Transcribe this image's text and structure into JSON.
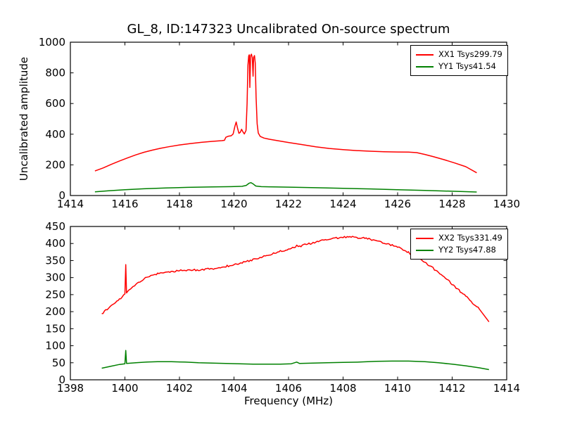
{
  "title": "GL_8, ID:147323 Uncalibrated On-source spectrum",
  "axes_labels": {
    "ylabel": "Uncalibrated amplitude",
    "xlabel": "Frequency (MHz)"
  },
  "colors": {
    "xx_line": "#ff0000",
    "yy_line": "#008000",
    "frame": "#000000",
    "background": "#ffffff"
  },
  "chart_data": [
    {
      "type": "line",
      "title": "on-source spectrum IF1",
      "xlim": [
        1414,
        1430
      ],
      "ylim": [
        0,
        1000
      ],
      "xticks": [
        1414,
        1416,
        1418,
        1420,
        1422,
        1424,
        1426,
        1428,
        1430
      ],
      "yticks": [
        0,
        200,
        400,
        600,
        800,
        1000
      ],
      "grid": false,
      "legend_position": "upper right",
      "series": [
        {
          "name": "XX1 Tsys299.79",
          "color": "#ff0000",
          "noise": false,
          "points": [
            [
              1414.9,
              160
            ],
            [
              1415.2,
              180
            ],
            [
              1415.5,
              203
            ],
            [
              1415.8,
              225
            ],
            [
              1416.1,
              246
            ],
            [
              1416.4,
              265
            ],
            [
              1416.7,
              282
            ],
            [
              1417.0,
              296
            ],
            [
              1417.3,
              308
            ],
            [
              1417.6,
              318
            ],
            [
              1418.0,
              330
            ],
            [
              1418.4,
              339
            ],
            [
              1418.8,
              347
            ],
            [
              1419.2,
              353
            ],
            [
              1419.55,
              358
            ],
            [
              1419.65,
              360
            ],
            [
              1419.7,
              380
            ],
            [
              1419.8,
              387
            ],
            [
              1419.9,
              390
            ],
            [
              1419.97,
              402
            ],
            [
              1420.03,
              450
            ],
            [
              1420.08,
              480
            ],
            [
              1420.13,
              440
            ],
            [
              1420.18,
              406
            ],
            [
              1420.23,
              412
            ],
            [
              1420.28,
              432
            ],
            [
              1420.33,
              414
            ],
            [
              1420.38,
              402
            ],
            [
              1420.44,
              425
            ],
            [
              1420.48,
              600
            ],
            [
              1420.51,
              850
            ],
            [
              1420.54,
              910
            ],
            [
              1420.56,
              918
            ],
            [
              1420.58,
              705
            ],
            [
              1420.61,
              912
            ],
            [
              1420.64,
              922
            ],
            [
              1420.67,
              898
            ],
            [
              1420.7,
              778
            ],
            [
              1420.72,
              902
            ],
            [
              1420.75,
              913
            ],
            [
              1420.78,
              865
            ],
            [
              1420.81,
              640
            ],
            [
              1420.85,
              468
            ],
            [
              1420.89,
              408
            ],
            [
              1420.96,
              386
            ],
            [
              1421.1,
              375
            ],
            [
              1421.3,
              367
            ],
            [
              1421.6,
              358
            ],
            [
              1422.0,
              346
            ],
            [
              1422.5,
              332
            ],
            [
              1423.0,
              318
            ],
            [
              1423.5,
              307
            ],
            [
              1424.0,
              299
            ],
            [
              1424.5,
              293
            ],
            [
              1425.0,
              289
            ],
            [
              1425.5,
              286
            ],
            [
              1426.0,
              284
            ],
            [
              1426.4,
              283
            ],
            [
              1426.7,
              280
            ],
            [
              1427.0,
              268
            ],
            [
              1427.3,
              254
            ],
            [
              1427.7,
              234
            ],
            [
              1428.1,
              212
            ],
            [
              1428.5,
              188
            ],
            [
              1428.9,
              148
            ]
          ]
        },
        {
          "name": "YY1 Tsys41.54",
          "color": "#008000",
          "noise": false,
          "points": [
            [
              1414.9,
              24
            ],
            [
              1415.4,
              31
            ],
            [
              1416.0,
              38
            ],
            [
              1416.7,
              44
            ],
            [
              1417.5,
              49
            ],
            [
              1418.3,
              53
            ],
            [
              1419.2,
              56
            ],
            [
              1419.9,
              58
            ],
            [
              1420.3,
              60
            ],
            [
              1420.45,
              66
            ],
            [
              1420.55,
              80
            ],
            [
              1420.62,
              84
            ],
            [
              1420.7,
              76
            ],
            [
              1420.8,
              62
            ],
            [
              1421.0,
              58
            ],
            [
              1421.5,
              56
            ],
            [
              1422.2,
              54
            ],
            [
              1423.0,
              51
            ],
            [
              1424.0,
              47
            ],
            [
              1425.0,
              43
            ],
            [
              1426.0,
              38
            ],
            [
              1427.0,
              33
            ],
            [
              1428.0,
              28
            ],
            [
              1428.9,
              23
            ]
          ]
        }
      ]
    },
    {
      "type": "line",
      "title": "on-source spectrum IF2",
      "xlim": [
        1398,
        1414
      ],
      "ylim": [
        0,
        450
      ],
      "xticks": [
        1398,
        1400,
        1402,
        1404,
        1406,
        1408,
        1410,
        1412,
        1414
      ],
      "yticks": [
        0,
        50,
        100,
        150,
        200,
        250,
        300,
        350,
        400,
        450
      ],
      "grid": false,
      "legend_position": "upper right",
      "series": [
        {
          "name": "XX2 Tsys331.49",
          "color": "#ff0000",
          "noise": true,
          "points": [
            [
              1399.15,
              194
            ],
            [
              1399.4,
              210
            ],
            [
              1399.65,
              226
            ],
            [
              1399.9,
              243
            ],
            [
              1400.0,
              252
            ],
            [
              1400.03,
              338
            ],
            [
              1400.06,
              255
            ],
            [
              1400.2,
              266
            ],
            [
              1400.4,
              280
            ],
            [
              1400.7,
              296
            ],
            [
              1401.0,
              307
            ],
            [
              1401.3,
              314
            ],
            [
              1401.6,
              317
            ],
            [
              1402.0,
              320
            ],
            [
              1402.4,
              322
            ],
            [
              1402.8,
              323
            ],
            [
              1403.2,
              326
            ],
            [
              1403.6,
              331
            ],
            [
              1404.0,
              338
            ],
            [
              1404.4,
              346
            ],
            [
              1404.8,
              355
            ],
            [
              1405.2,
              365
            ],
            [
              1405.6,
              375
            ],
            [
              1406.0,
              384
            ],
            [
              1406.25,
              389
            ],
            [
              1406.3,
              395
            ],
            [
              1406.36,
              391
            ],
            [
              1406.7,
              398
            ],
            [
              1407.0,
              404
            ],
            [
              1407.3,
              410
            ],
            [
              1407.6,
              415
            ],
            [
              1407.9,
              418
            ],
            [
              1408.2,
              419
            ],
            [
              1408.5,
              418
            ],
            [
              1408.8,
              415
            ],
            [
              1409.1,
              411
            ],
            [
              1409.4,
              405
            ],
            [
              1409.7,
              398
            ],
            [
              1410.0,
              389
            ],
            [
              1410.3,
              378
            ],
            [
              1410.6,
              365
            ],
            [
              1410.9,
              350
            ],
            [
              1411.2,
              334
            ],
            [
              1411.5,
              315
            ],
            [
              1411.8,
              295
            ],
            [
              1412.1,
              274
            ],
            [
              1412.4,
              252
            ],
            [
              1412.7,
              230
            ],
            [
              1413.0,
              207
            ],
            [
              1413.35,
              170
            ]
          ]
        },
        {
          "name": "YY2 Tsys47.88",
          "color": "#008000",
          "noise": false,
          "points": [
            [
              1399.15,
              34
            ],
            [
              1399.5,
              40
            ],
            [
              1399.8,
              45
            ],
            [
              1400.0,
              47
            ],
            [
              1400.03,
              86
            ],
            [
              1400.06,
              48
            ],
            [
              1400.4,
              50
            ],
            [
              1400.8,
              52
            ],
            [
              1401.2,
              53
            ],
            [
              1401.7,
              53
            ],
            [
              1402.2,
              52
            ],
            [
              1402.7,
              50
            ],
            [
              1403.2,
              49
            ],
            [
              1403.7,
              48
            ],
            [
              1404.2,
              47
            ],
            [
              1404.7,
              46
            ],
            [
              1405.2,
              46
            ],
            [
              1405.7,
              46
            ],
            [
              1406.1,
              47
            ],
            [
              1406.3,
              52
            ],
            [
              1406.4,
              48
            ],
            [
              1406.9,
              49
            ],
            [
              1407.4,
              50
            ],
            [
              1408.0,
              51
            ],
            [
              1408.6,
              52
            ],
            [
              1409.2,
              54
            ],
            [
              1409.8,
              55
            ],
            [
              1410.4,
              55
            ],
            [
              1411.0,
              53
            ],
            [
              1411.5,
              50
            ],
            [
              1412.0,
              46
            ],
            [
              1412.5,
              41
            ],
            [
              1413.0,
              35
            ],
            [
              1413.35,
              30
            ]
          ]
        }
      ]
    }
  ]
}
